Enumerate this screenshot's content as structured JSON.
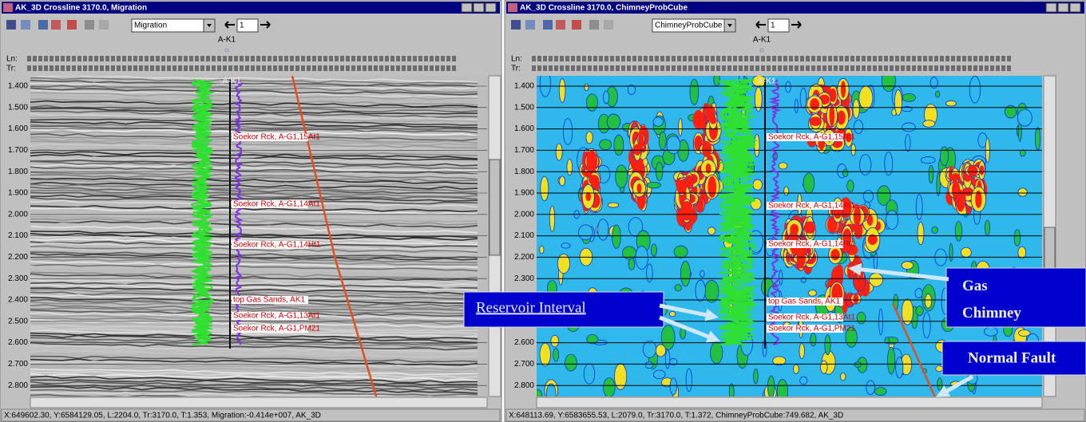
{
  "windows": [
    {
      "title": "AK_3D Crossline 3170.0, Migration",
      "combo": "Migration",
      "spin": "1",
      "well": "A-K1",
      "ln_label": "Ln:",
      "tr_label": "Tr:",
      "time_ticks": [
        "1.400",
        "1.500",
        "1.600",
        "1.700",
        "1.800",
        "1.900",
        "2.000",
        "2.100",
        "2.200",
        "2.300",
        "2.400",
        "2.500",
        "2.600",
        "2.700",
        "2.800"
      ],
      "horizons": [
        "Soekor Rck, A-G1,15At1",
        "Soekor Rck, A-G1,14At1",
        "Soekor Rck, A-G1,14Ht1",
        "top Gas Sands, AK1",
        "Soekor Rck, A-G1,13At1",
        "Soekor Rck, A-G1,PM21"
      ],
      "status": "X:649602.30, Y:6584129.05, L:2204.0, Tr:3170.0, T:1.353, Migration:-0.414e+007, AK_3D"
    },
    {
      "title": "AK_3D Crossline 3170.0, ChimneyProbCube",
      "combo": "ChimneyProbCube",
      "spin": "1",
      "well": "A-K1",
      "ln_label": "Ln:",
      "tr_label": "Tr:",
      "time_ticks": [
        "1.400",
        "1.500",
        "1.600",
        "1.700",
        "1.800",
        "1.900",
        "2.000",
        "2.100",
        "2.200",
        "2.300",
        "2.400",
        "2.500",
        "2.600",
        "2.700",
        "2.800"
      ],
      "horizons": [
        "Soekor Rck, A-G1,15At1",
        "Soekor Rck, A-G1,14At1",
        "Soekor Rck, A-G1,14Ht1",
        "top Gas Sands, AK1",
        "Soekor Rck, A-G1,13At1",
        "Soekor Rck, A-G1,PM21"
      ],
      "status": "X:648113.69, Y:6583655.53, L:2079.0, Tr:3170.0, T:1.372, ChimneyProbCube:749.682, AK_3D"
    }
  ],
  "annotations": [
    "Reservoir Interval",
    "Gas Chimney",
    "Normal Fault"
  ]
}
